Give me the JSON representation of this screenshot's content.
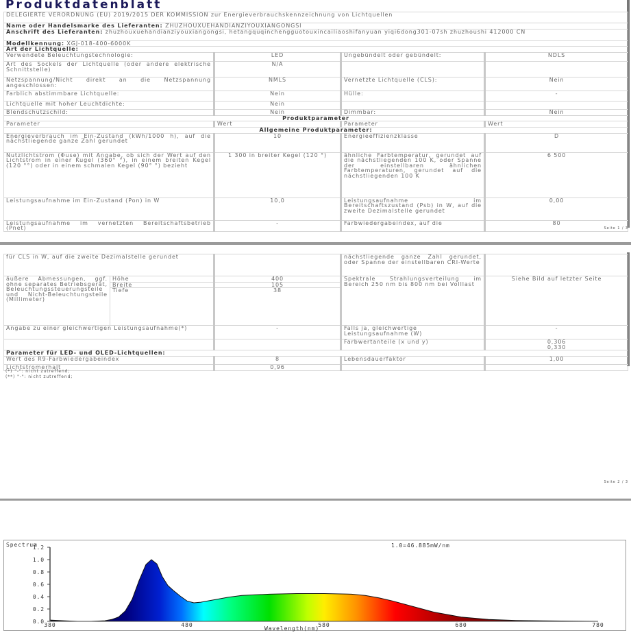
{
  "page1": {
    "title": "Produktdatenblatt",
    "subtitle": "DELEGIERTE VERORDNUNG (EU) 2019/2015 DER KOMMISSION zur Energieverbrauchskennzeichnung von Lichtquellen",
    "supplier_label": "Name oder Handelsmarke des Lieferanten:",
    "supplier_value": "ZHUZHOUXUEHANDIANZIYOUXIANGONGSI",
    "address_label": "Anschrift des Lieferanten:",
    "address_value": "zhuzhouxuehandianziyouxiangongsi, hetangquqinchengguotouxincailiaoshifanyuan yiqi6dong301-07sh zhuzhoushi 412000 CN",
    "model_label": "Modellkennung:",
    "model_value": "XGJ-018-400-6000K",
    "light_type": "Art der Lichtquelle:",
    "rows": [
      {
        "p": "Verwendete Beleuchtungstechnologie:",
        "v": "LED",
        "p2": "Ungebündelt oder gebündelt:",
        "v2": "NDLS"
      },
      {
        "p": "Art des Sockels der Lichtquelle (oder andere elektrische Schnittstelle)",
        "v": "N/A",
        "p2": "",
        "v2": ""
      },
      {
        "p": "Netzspannung/Nicht direkt an die Netzspannung angeschlossen:",
        "v": "NMLS",
        "p2": "Vernetzte Lichtquelle (CLS):",
        "v2": "Nein"
      },
      {
        "p": "Farblich abstimmbare Lichtquelle:",
        "v": "Nein",
        "p2": "Hülle:",
        "v2": "-"
      },
      {
        "p": "Lichtquelle mit hoher Leuchtdichte:",
        "v": "Nein",
        "p2": "",
        "v2": ""
      },
      {
        "p": "Blendschutzschild:",
        "v": "Nein",
        "p2": "Dimmbar:",
        "v2": "Nein"
      }
    ],
    "product_params": "Produktparameter",
    "col_param": "Parameter",
    "col_value": "Wert",
    "general": "Allgemeine Produktparameter:",
    "rows2": [
      {
        "p": "Energieverbrauch im Ein-Zustand (kWh/1000 h), auf die nächstliegende ganze Zahl gerundet",
        "v": "10",
        "p2": "Energieeffizienzklasse",
        "v2": "D"
      },
      {
        "p": "Nutzlichtstrom (Φuse) mit Angabe, ob sich der Wert auf den Lichtstrom in einer Kugel (360° °), in einem breiten Kegel (120 °°) oder in einem schmalen Kegel (90° °) bezieht",
        "v": "1 300 in breiter Kegel (120 °)",
        "p2": "ähnliche Farbtemperatur, gerundet auf die nächstliegenden 100 K, oder Spanne der einstellbaren ähnlichen Farbtemperaturen, gerundet auf die nächstliegenden 100 K",
        "v2": "6 500"
      },
      {
        "p": "Leistungsaufnahme im Ein-Zustand (Pon) in W",
        "v": "10,0",
        "p2": "Leistungsaufnahme im Bereitschaftszustand (Psb) in W, auf die zweite Dezimalstelle gerundet",
        "v2": "0,00"
      },
      {
        "p": "Leistungsaufnahme im vernetzten Bereitschaftsbetrieb (Pnet)",
        "v": "-",
        "p2": "Farbwiedergabeindex, auf die",
        "v2": "80"
      }
    ],
    "page_no": "Seite 1 / 3"
  },
  "page2": {
    "cont_left": "für CLS in W, auf die zweite Dezimalstelle gerundet",
    "cont_right": "nächstliegende ganze Zahl gerundet, oder Spanne der einstellbaren CRI-Werte",
    "dims_label": "äußere Abmessungen, ggf. ohne separates Betriebsgerät, Beleuchtungssteuerungsteile und Nicht-Beleuchtungsteile (Millimeter)",
    "dims": [
      {
        "k": "Höhe",
        "v": "400"
      },
      {
        "k": "Breite",
        "v": "105"
      },
      {
        "k": "Tiefe",
        "v": "38"
      }
    ],
    "spd_label": "Spektrale Strahlungsverteilung im Bereich 250 nm bis 800 nm bei Volllast",
    "spd_value": "Siehe Bild auf letzter Seite",
    "equiv_label": "Angabe zu einer gleichwertigen Leistungsaufnahme(*)",
    "equiv_value": "-",
    "equiv2_label": "Falls ja, gleichwertige Leistungsaufnahme (W)",
    "equiv2_value": "-",
    "chroma_label": "Farbwertanteile (x und y)",
    "chroma_x": "0,306",
    "chroma_y": "0,330",
    "led_header": "Parameter für LED- und OLED-Lichtquellen:",
    "r9_label": "Wert des R9-Farbwiedergabeindex",
    "r9_value": "8",
    "life_label": "Lebensdauerfaktor",
    "life_value": "1,00",
    "maint_label": "Lichtstromerhalt",
    "maint_value": "0,96",
    "fn1": "(*) \"-\": nicht zutreffend;",
    "fn2": "(**) \"-\": nicht zutreffend;",
    "page_no": "Seite 2 / 3"
  },
  "chart_data": {
    "type": "area",
    "title": "1.0=46.885mW/nm",
    "ylabel": "Spectrum",
    "xlabel": "Wavelength(nm)",
    "xlim": [
      380,
      780
    ],
    "ylim": [
      0,
      1.2
    ],
    "xticks": [
      "380",
      "480",
      "580",
      "680",
      "780"
    ],
    "yticks": [
      "0.0",
      "0.2",
      "0.4",
      "0.6",
      "0.8",
      "1.0",
      "1.2"
    ],
    "x": [
      380,
      390,
      400,
      410,
      420,
      425,
      430,
      435,
      440,
      445,
      450,
      454,
      458,
      462,
      466,
      470,
      475,
      480,
      485,
      490,
      500,
      510,
      520,
      530,
      540,
      560,
      580,
      600,
      610,
      620,
      630,
      640,
      650,
      660,
      670,
      680,
      690,
      700,
      720,
      740,
      760,
      780
    ],
    "y": [
      0.02,
      0.01,
      0.0,
      0.0,
      0.01,
      0.03,
      0.07,
      0.17,
      0.36,
      0.66,
      0.92,
      1.0,
      0.93,
      0.72,
      0.58,
      0.5,
      0.41,
      0.33,
      0.3,
      0.31,
      0.35,
      0.39,
      0.42,
      0.43,
      0.44,
      0.45,
      0.45,
      0.44,
      0.42,
      0.38,
      0.33,
      0.27,
      0.21,
      0.15,
      0.11,
      0.07,
      0.05,
      0.03,
      0.015,
      0.008,
      0.004,
      0.0
    ]
  }
}
